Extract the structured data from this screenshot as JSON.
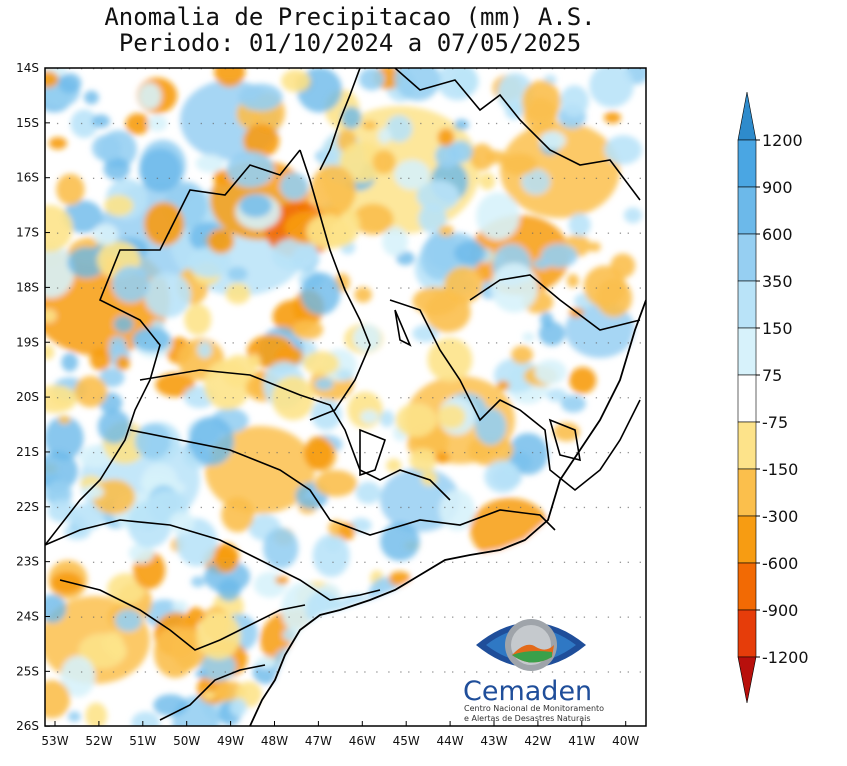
{
  "title": {
    "line1": "Anomalia de Precipitacao (mm) A.S.",
    "line2": "Periodo: 01/10/2024 a 07/05/2025"
  },
  "map": {
    "lat_labels": [
      "14S",
      "15S",
      "16S",
      "17S",
      "18S",
      "19S",
      "20S",
      "21S",
      "22S",
      "23S",
      "24S",
      "25S",
      "26S"
    ],
    "lon_labels": [
      "53W",
      "52W",
      "51W",
      "50W",
      "49W",
      "48W",
      "47W",
      "46W",
      "45W",
      "44W",
      "43W",
      "42W",
      "41W",
      "40W"
    ]
  },
  "colorbar": {
    "labels": [
      "1200",
      "900",
      "600",
      "350",
      "150",
      "75",
      "-75",
      "-150",
      "-300",
      "-600",
      "-900",
      "-1200"
    ],
    "colors": {
      "dark_blue": "#2e8bcc",
      "blue": "#4aa6e3",
      "mid_blue": "#6cb9ea",
      "light_blue": "#96cff2",
      "pale_blue": "#b9e3f8",
      "very_pale_blue": "#d7f2fb",
      "white": "#ffffff",
      "pale_yellow": "#fde38a",
      "light_orange": "#fbbf4c",
      "orange": "#f79c12",
      "dark_orange": "#f26a04",
      "red_orange": "#e63d0a",
      "dark_red": "#b8100c"
    }
  },
  "logo": {
    "name": "Cemaden",
    "subtitle1": "Centro Nacional de Monitoramento",
    "subtitle2": "e Alertas de Desastres Naturais"
  }
}
